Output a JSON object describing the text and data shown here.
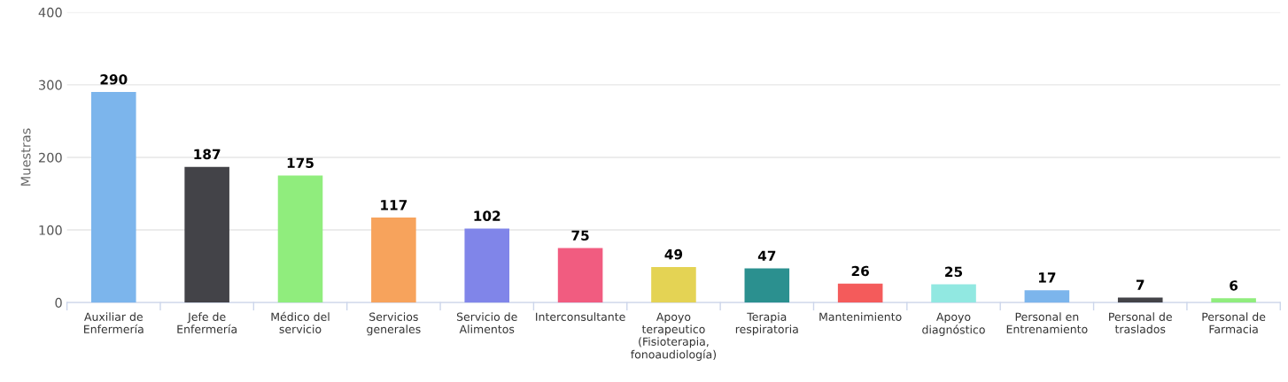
{
  "chart_data": {
    "type": "bar",
    "ylabel": "Muestras",
    "categories": [
      "Auxiliar de\nEnfermería",
      "Jefe de\nEnfermería",
      "Médico del\nservicio",
      "Servicios\ngenerales",
      "Servicio de\nAlimentos",
      "Interconsultante",
      "Apoyo\nterapeutico\n(Fisioterapia,\nfonoaudiología)",
      "Terapia\nrespiratoria",
      "Mantenimiento",
      "Apoyo\ndiagnóstico",
      "Personal en\nEntrenamiento",
      "Personal de\ntraslados",
      "Personal de\nFarmacia"
    ],
    "values": [
      290,
      187,
      175,
      117,
      102,
      75,
      49,
      47,
      26,
      25,
      17,
      7,
      6
    ],
    "colors": [
      "#7cb5ec",
      "#434348",
      "#90ed7d",
      "#f7a35c",
      "#8085e9",
      "#f15c80",
      "#e4d354",
      "#2b908f",
      "#f45b5b",
      "#91e8e1",
      "#7cb5ec",
      "#434348",
      "#90ed7d"
    ],
    "ylim": [
      0,
      400
    ],
    "yticks": [
      0,
      100,
      200,
      300,
      400
    ],
    "grid": "y",
    "data_labels": true,
    "legend": false
  }
}
